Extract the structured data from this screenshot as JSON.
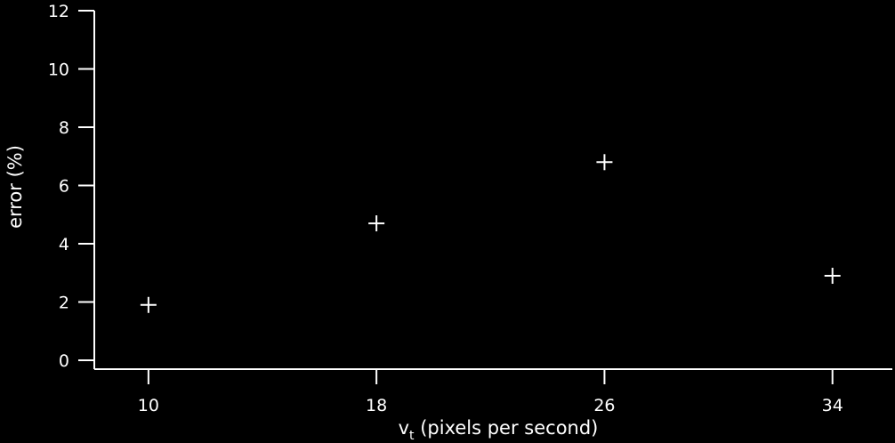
{
  "chart_data": {
    "type": "scatter",
    "title": "",
    "xlabel": "v",
    "xlabel_subscript": "t",
    "xlabel_suffix": " (pixels per second)",
    "ylabel": "error (%)",
    "x_ticks": [
      10,
      18,
      26,
      34
    ],
    "y_ticks": [
      0,
      2,
      4,
      6,
      8,
      10,
      12
    ],
    "xlim": [
      8.1,
      36.1
    ],
    "ylim": [
      0,
      12
    ],
    "grid": false,
    "marker": "+",
    "points": [
      {
        "x": 10,
        "y": 1.9
      },
      {
        "x": 18,
        "y": 4.7
      },
      {
        "x": 26,
        "y": 6.8
      },
      {
        "x": 34,
        "y": 2.9
      }
    ],
    "colors": {
      "background": "#000000",
      "foreground": "#ffffff"
    }
  }
}
